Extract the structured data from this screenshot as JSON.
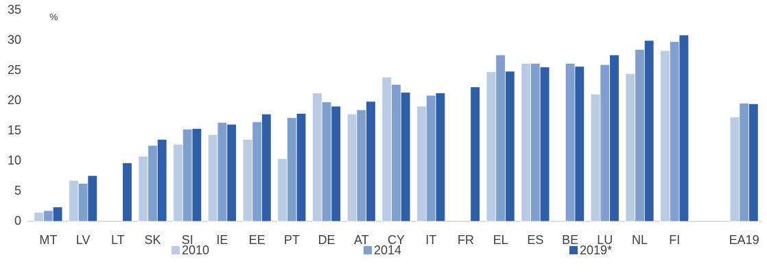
{
  "chart_data": {
    "type": "bar",
    "y_unit": "%",
    "categories": [
      "MT",
      "LV",
      "LT",
      "SK",
      "SI",
      "IE",
      "EE",
      "PT",
      "DE",
      "AT",
      "CY",
      "IT",
      "FR",
      "EL",
      "ES",
      "BE",
      "LU",
      "NL",
      "FI",
      null,
      "EA19"
    ],
    "series": [
      {
        "name": "2010",
        "color": "#b9cce4",
        "values": [
          1.5,
          6.8,
          null,
          10.8,
          12.8,
          14.4,
          13.6,
          10.4,
          21.3,
          17.8,
          23.9,
          19.1,
          null,
          24.8,
          26.2,
          null,
          21.1,
          24.5,
          28.3,
          null,
          17.3
        ]
      },
      {
        "name": "2014",
        "color": "#7f9fcc",
        "values": [
          1.8,
          6.3,
          null,
          12.6,
          15.3,
          16.4,
          16.5,
          17.2,
          19.8,
          18.5,
          22.7,
          20.9,
          null,
          27.6,
          26.2,
          26.2,
          26.0,
          28.5,
          29.8,
          null,
          19.6
        ]
      },
      {
        "name": "2019*",
        "color": "#2f5ea8",
        "values": [
          2.4,
          7.6,
          9.7,
          13.6,
          15.4,
          16.1,
          17.8,
          17.9,
          19.1,
          19.9,
          21.4,
          21.3,
          22.3,
          24.9,
          25.6,
          25.7,
          27.6,
          30.0,
          30.9,
          null,
          19.5
        ]
      }
    ],
    "ylim": [
      0,
      35
    ],
    "yticks": [
      0,
      5,
      10,
      15,
      20,
      25,
      30,
      35
    ],
    "grid": false,
    "legend": "bottom"
  }
}
